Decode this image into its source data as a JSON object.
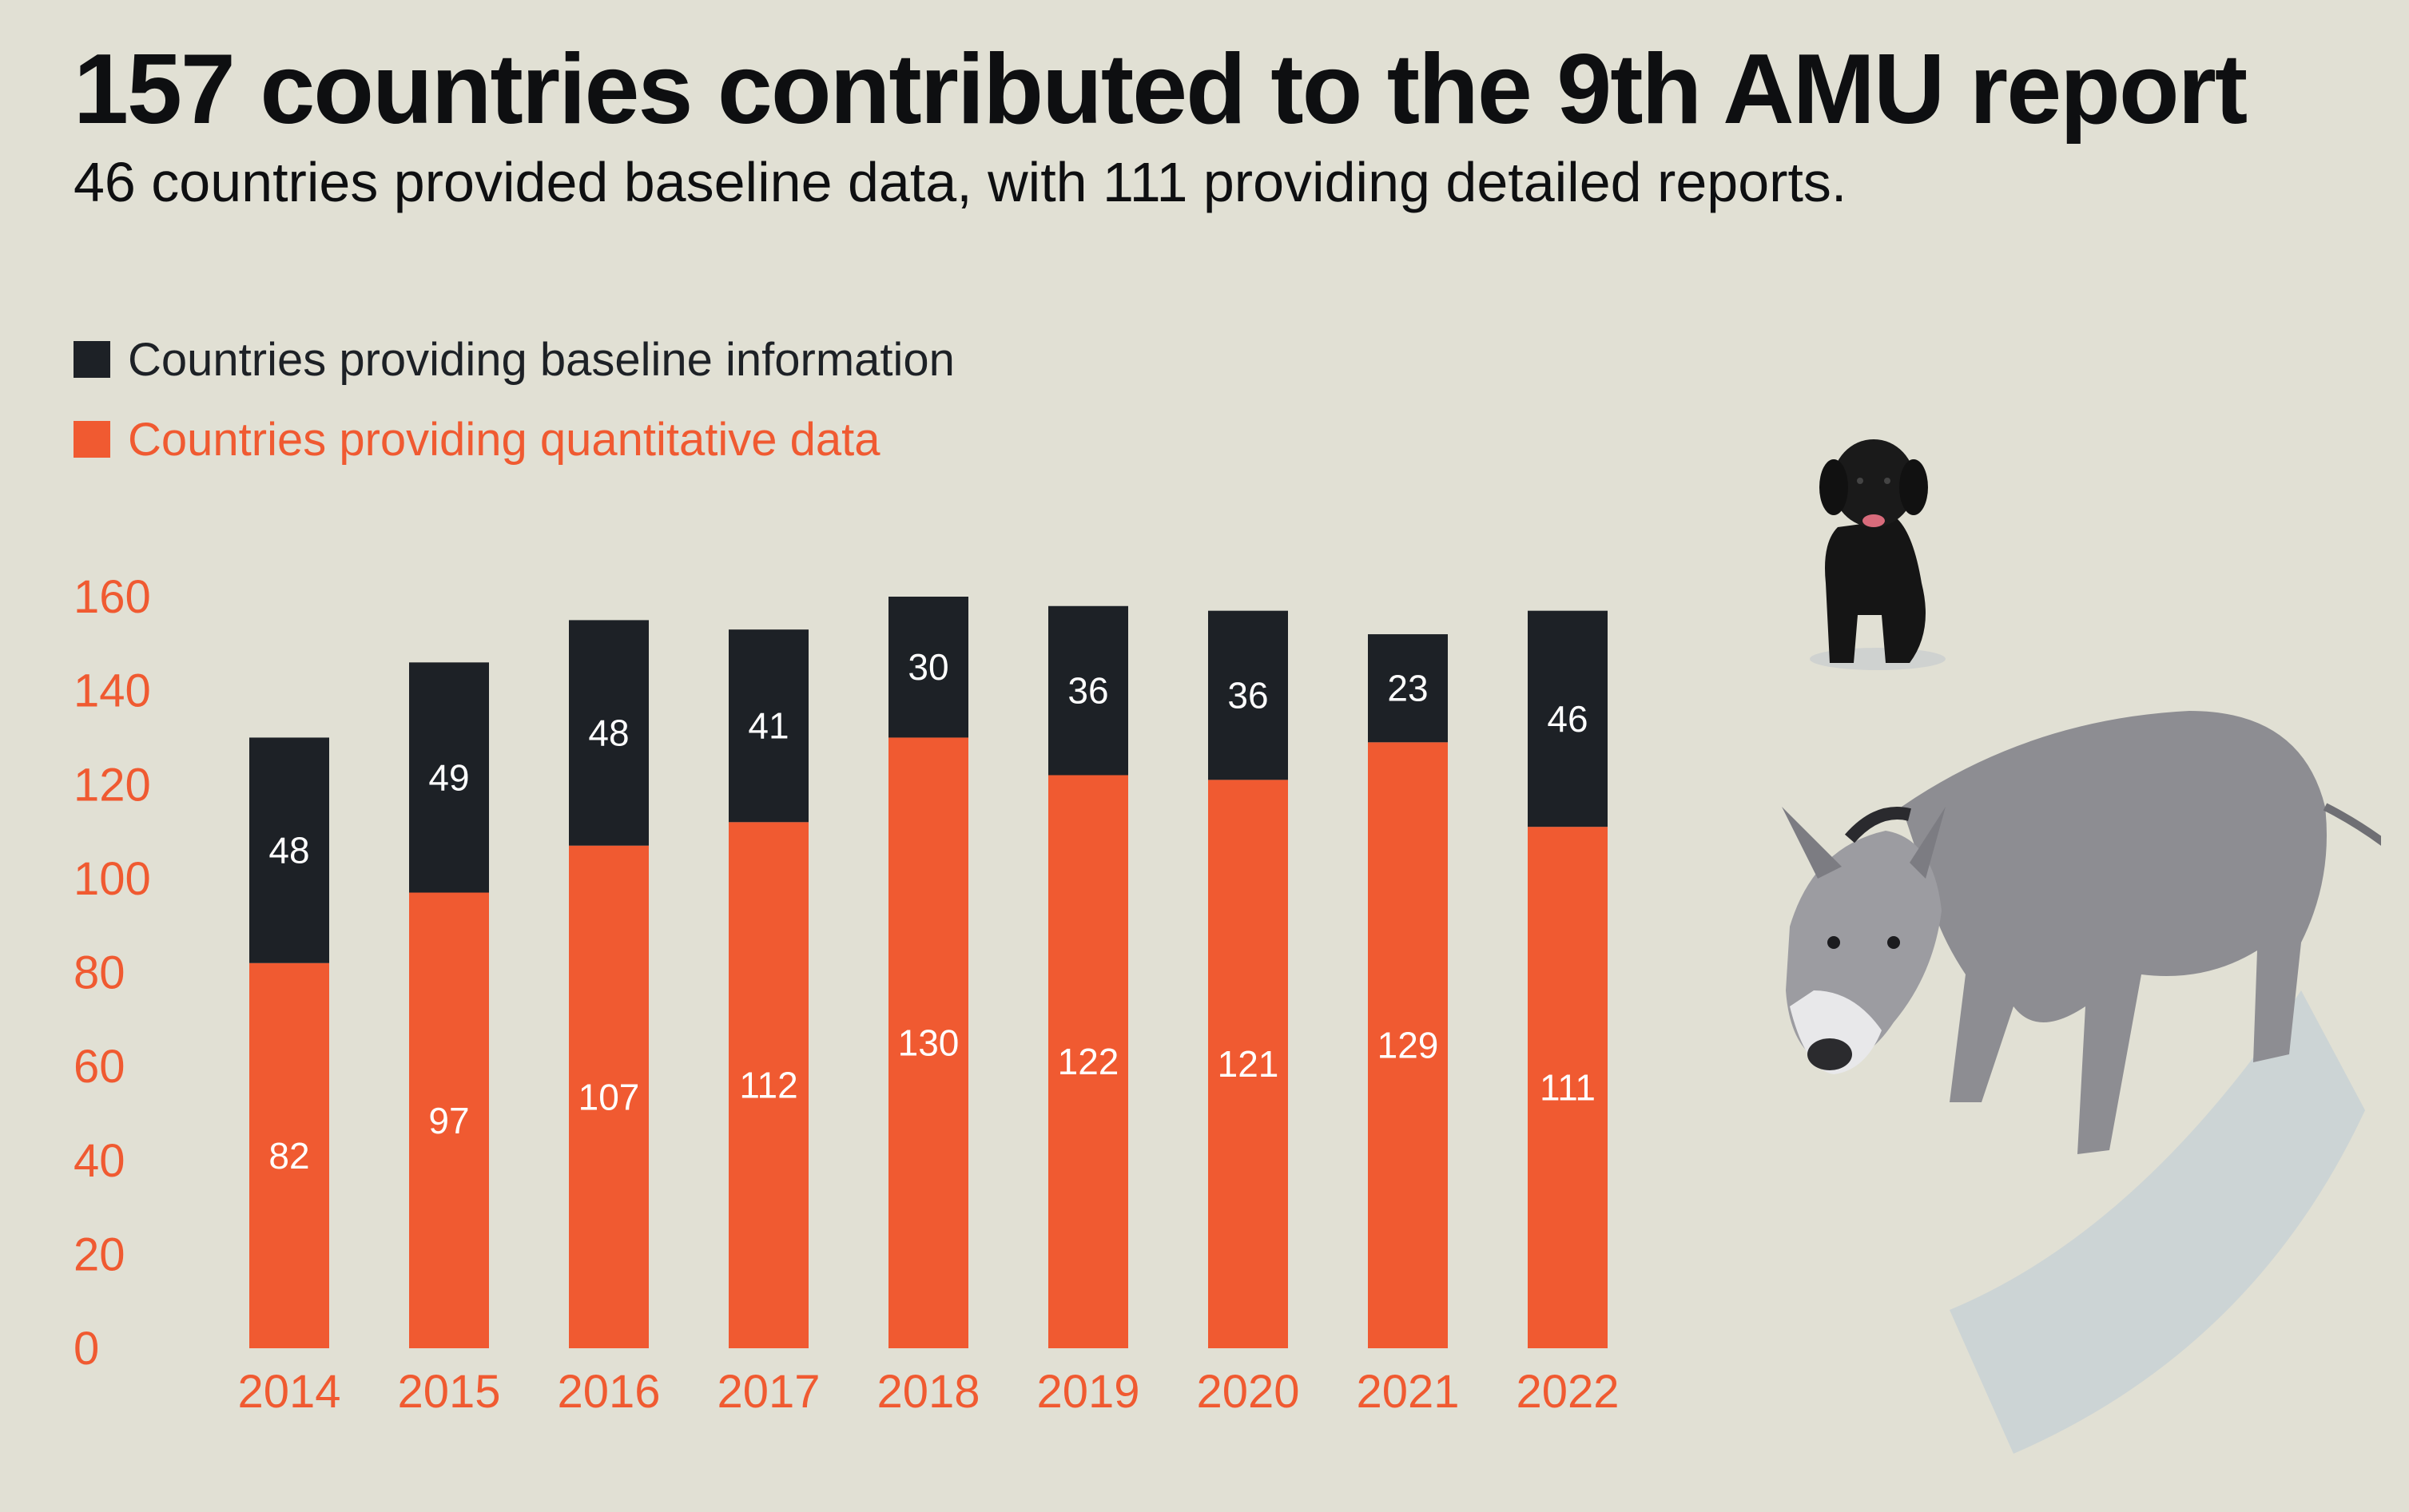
{
  "colors": {
    "background": "#e1e0d4",
    "baseline": "#1d2126",
    "quantitative": "#f05a31",
    "text": "#0e0f11"
  },
  "title": "157 countries contributed to the 9th AMU report",
  "subtitle": "46 countries provided baseline data, with 111 providing detailed reports.",
  "legend": {
    "baseline": "Countries providing baseline information",
    "quantitative": "Countries providing quantitative data"
  },
  "illustration": {
    "icons": [
      "dog-icon",
      "donkey-icon"
    ]
  },
  "chart_data": {
    "type": "bar",
    "stacked": true,
    "categories": [
      "2014",
      "2015",
      "2016",
      "2017",
      "2018",
      "2019",
      "2020",
      "2021",
      "2022"
    ],
    "series": [
      {
        "name": "Countries providing quantitative data",
        "values": [
          82,
          97,
          107,
          112,
          130,
          122,
          121,
          129,
          111
        ]
      },
      {
        "name": "Countries providing baseline information",
        "values": [
          48,
          49,
          48,
          41,
          30,
          36,
          36,
          23,
          46
        ]
      }
    ],
    "yticks": [
      0,
      20,
      40,
      60,
      80,
      100,
      120,
      140,
      160
    ],
    "ylim": [
      0,
      160
    ],
    "grid": false,
    "legend_position": "top-left"
  }
}
